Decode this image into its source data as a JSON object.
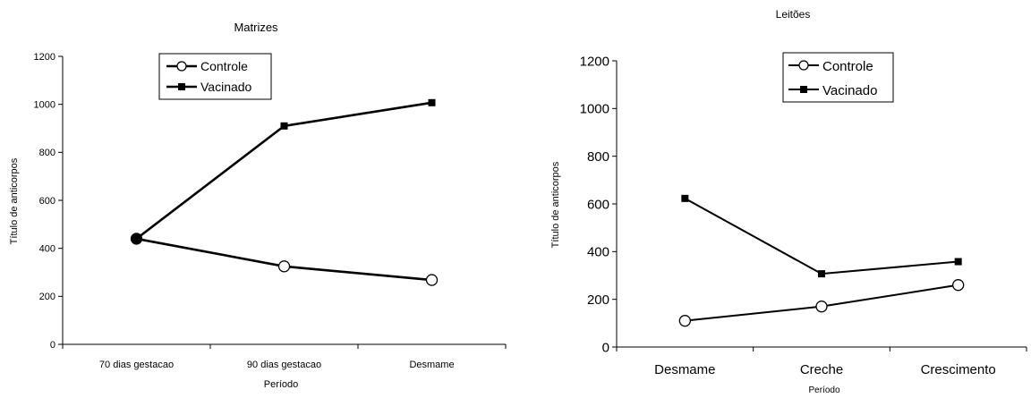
{
  "chart_data": [
    {
      "type": "line",
      "title": "Matrizes",
      "xlabel": "Período",
      "ylabel": "Título de anticorpos",
      "categories": [
        "70 dias gestacao",
        "90 dias gestacao",
        "Desmame"
      ],
      "ylim": [
        0,
        1200
      ],
      "yticks": [
        0,
        200,
        400,
        600,
        800,
        1000,
        1200
      ],
      "yticks_labels": [
        "0",
        "200",
        "400",
        "600",
        "800",
        "1000",
        "1200"
      ],
      "grid": false,
      "legend_position": "top-center",
      "series": [
        {
          "name": "Controle",
          "marker": "circle-open",
          "values": [
            440,
            325,
            268
          ]
        },
        {
          "name": "Vacinado",
          "marker": "square-filled",
          "values": [
            440,
            910,
            1007
          ]
        }
      ]
    },
    {
      "type": "line",
      "title": "Leitões",
      "xlabel": "Período",
      "ylabel": "Título de anticorpos",
      "categories": [
        "Desmame",
        "Creche",
        "Crescimento"
      ],
      "ylim": [
        0,
        1200
      ],
      "yticks": [
        0,
        200,
        400,
        600,
        800,
        1000,
        1200
      ],
      "yticks_labels": [
        "0",
        "200",
        "400",
        "600",
        "800",
        "1000",
        "1200"
      ],
      "grid": false,
      "legend_position": "top-right",
      "series": [
        {
          "name": "Controle",
          "marker": "circle-open",
          "values": [
            110,
            170,
            260
          ]
        },
        {
          "name": "Vacinado",
          "marker": "square-filled",
          "values": [
            623,
            307,
            358
          ]
        }
      ]
    }
  ]
}
